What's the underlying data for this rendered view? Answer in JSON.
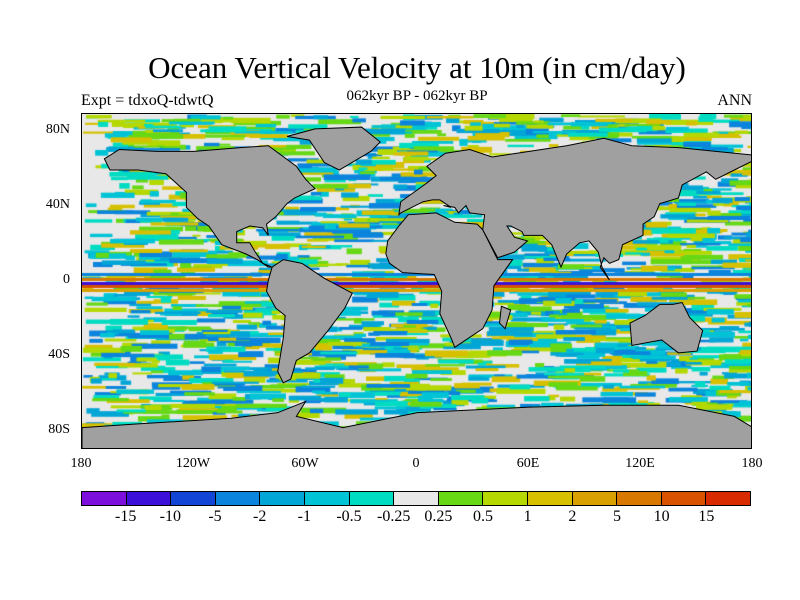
{
  "title": "Ocean Vertical Velocity at 10m (in cm/day)",
  "experiment": "Expt = tdxoQ-tdwtQ",
  "period": "062kyr BP - 062kyr BP",
  "season": "ANN",
  "lat_labels": [
    "80N",
    "40N",
    "0",
    "40S",
    "80S"
  ],
  "lon_labels": [
    "180",
    "120W",
    "60W",
    "0",
    "60E",
    "120E",
    "180"
  ],
  "colorbar": {
    "labels": [
      "-15",
      "-10",
      "-5",
      "-2",
      "-1",
      "-0.5",
      "-0.25",
      "0.25",
      "0.5",
      "1",
      "2",
      "5",
      "10",
      "15"
    ],
    "colors": [
      "#7d0fdd",
      "#3c10d8",
      "#1244d6",
      "#0a84dc",
      "#02a6d6",
      "#00c4d6",
      "#00dcc2",
      "#e8e8e8",
      "#66d814",
      "#b4d800",
      "#d6c000",
      "#d8a000",
      "#d87800",
      "#d85200",
      "#d82c00"
    ]
  },
  "land_color": "#a0a0a0"
}
